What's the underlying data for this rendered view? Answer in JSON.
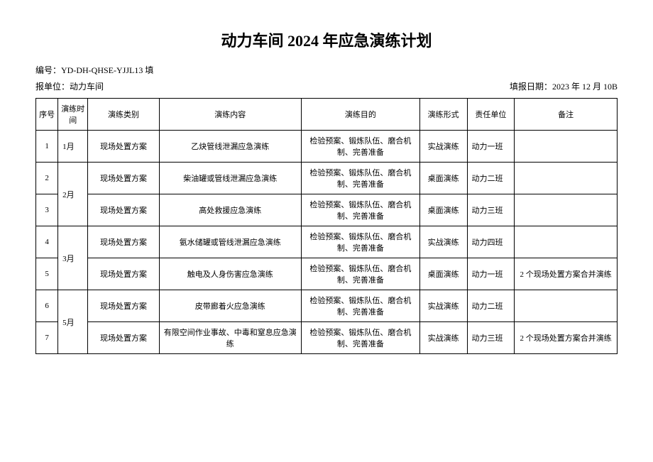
{
  "title": "动力车间 2024 年应急演练计划",
  "doc_number_label": "编号：",
  "doc_number": "YD-DH-QHSE-YJJL13 填",
  "report_unit_label": "报单位：",
  "report_unit": "动力车间",
  "report_date_label": "填报日期：",
  "report_date": "2023 年 12 月 10B",
  "headers": {
    "seq": "序号",
    "time": "演练时间",
    "type": "演练类别",
    "content": "演练内容",
    "purpose": "演练目的",
    "form": "演练形式",
    "unit": "责任单位",
    "remark": "备注"
  },
  "purpose_text": "检验预案、锻炼队伍、磨合机制、完善准备",
  "rows": [
    {
      "seq": "1",
      "time": "1月",
      "type": "现场处置方案",
      "content": "乙炔管线泄漏应急演练",
      "form": "实战演练",
      "unit": "动力一班",
      "remark": ""
    },
    {
      "seq": "2",
      "time": "2月",
      "type": "现场处置方案",
      "content": "柴油罐或管线泄漏应急演练",
      "form": "桌面演练",
      "unit": "动力二班",
      "remark": ""
    },
    {
      "seq": "3",
      "time": "",
      "type": "现场处置方案",
      "content": "高处救援应急演练",
      "form": "桌面演练",
      "unit": "动力三班",
      "remark": ""
    },
    {
      "seq": "4",
      "time": "3月",
      "type": "现场处置方案",
      "content": "氨水储罐或管线泄漏应急演练",
      "form": "实战演练",
      "unit": "动力四班",
      "remark": ""
    },
    {
      "seq": "5",
      "time": "",
      "type": "现场处置方案",
      "content": "触电及人身伤害应急演练",
      "form": "桌面演练",
      "unit": "动力一班",
      "remark": "2 个现场处置方案合并演练"
    },
    {
      "seq": "6",
      "time": "5月",
      "type": "现场处置方案",
      "content": "皮带廊着火应急演练",
      "form": "实战演练",
      "unit": "动力二班",
      "remark": ""
    },
    {
      "seq": "7",
      "time": "",
      "type": "现场处置方案",
      "content": "有限空间作业事故、中毒和窒息应急演练",
      "form": "实战演练",
      "unit": "动力三班",
      "remark": "2 个现场处置方案合并演练"
    }
  ]
}
